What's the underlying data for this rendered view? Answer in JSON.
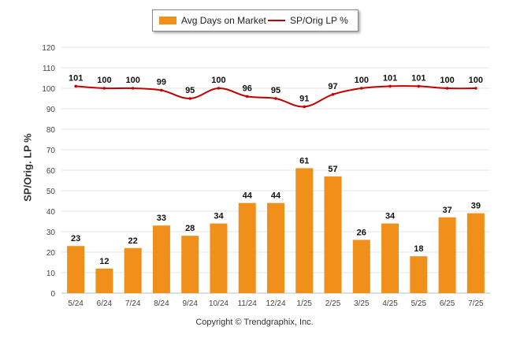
{
  "chart_data": {
    "type": "bar+line",
    "categories": [
      "5/24",
      "6/24",
      "7/24",
      "8/24",
      "9/24",
      "10/24",
      "11/24",
      "12/24",
      "1/25",
      "2/25",
      "3/25",
      "4/25",
      "5/25",
      "6/25",
      "7/25"
    ],
    "series": [
      {
        "name": "Avg Days on Market",
        "type": "bar",
        "color": "#f0901a",
        "values": [
          23,
          12,
          22,
          33,
          28,
          34,
          44,
          44,
          61,
          57,
          26,
          34,
          18,
          37,
          39
        ]
      },
      {
        "name": "SP/Orig LP %",
        "type": "line",
        "color": "#c00000",
        "values": [
          101,
          100,
          100,
          99,
          95,
          100,
          96,
          95,
          91,
          97,
          100,
          101,
          101,
          100,
          100
        ]
      }
    ],
    "ylabel": "SP/Orig. LP %",
    "ylim": [
      0,
      120
    ],
    "yticks": [
      0,
      10,
      20,
      30,
      40,
      50,
      60,
      70,
      80,
      90,
      100,
      110,
      120
    ],
    "grid": true,
    "legend_position": "top-center"
  },
  "footer": {
    "copyright": "Copyright © Trendgraphix, Inc."
  }
}
